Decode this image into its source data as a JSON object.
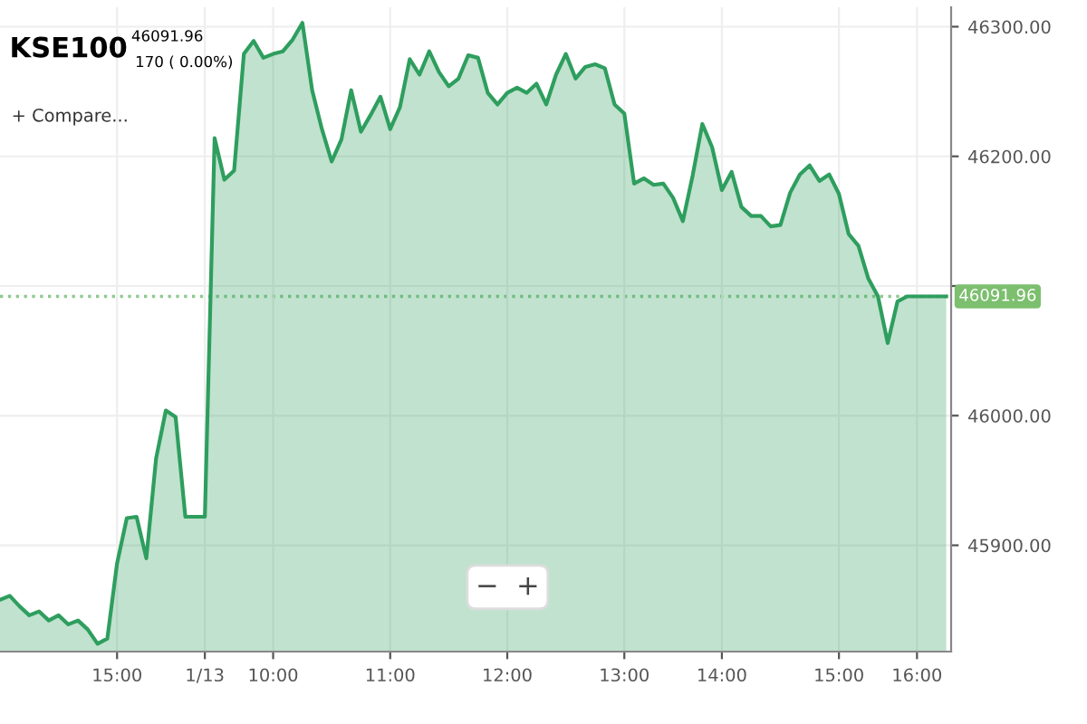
{
  "chart_data": {
    "type": "area",
    "title": "KSE100",
    "subtitle": "46091.96\n170 ( 0.00%)",
    "annotations": [
      "+ Compare...",
      "−  +"
    ],
    "categories": [
      null,
      null,
      null,
      null,
      null,
      null,
      null,
      null,
      null,
      null,
      null,
      null,
      "15:00",
      null,
      null,
      null,
      null,
      null,
      null,
      null,
      null,
      "1/13",
      null,
      null,
      null,
      null,
      null,
      null,
      "10:00",
      null,
      null,
      null,
      null,
      null,
      null,
      null,
      null,
      null,
      null,
      null,
      "11:00",
      null,
      null,
      null,
      null,
      null,
      null,
      null,
      null,
      null,
      null,
      null,
      "12:00",
      null,
      null,
      null,
      null,
      null,
      null,
      null,
      null,
      null,
      null,
      null,
      "13:00",
      null,
      null,
      null,
      null,
      null,
      null,
      null,
      null,
      null,
      "14:00",
      null,
      null,
      null,
      null,
      null,
      null,
      null,
      null,
      null,
      null,
      null,
      "15:00",
      null,
      null,
      null,
      null,
      null,
      null,
      null,
      "16:00",
      null,
      null,
      null
    ],
    "series": [
      {
        "color": "#2e9e5e",
        "values": [
          45858,
          45861,
          45853,
          45846,
          45849,
          45842,
          45846,
          45839,
          45842,
          45835,
          45824,
          45828,
          45886,
          45921,
          45922,
          45890,
          45967,
          46004,
          45999,
          45922,
          45922,
          45922,
          46214,
          46182,
          46189,
          46279,
          46289,
          46276,
          46279,
          46281,
          46290,
          46303,
          46251,
          46221,
          46196,
          46213,
          46251,
          46219,
          46232,
          46246,
          46221,
          46238,
          46275,
          46263,
          46281,
          46265,
          46254,
          46260,
          46278,
          46276,
          46249,
          46240,
          46249,
          46253,
          46249,
          46256,
          46240,
          46263,
          46279,
          46260,
          46269,
          46271,
          46268,
          46240,
          46233,
          46179,
          46183,
          46178,
          46179,
          46168,
          46150,
          46185,
          46225,
          46207,
          46174,
          46188,
          46161,
          46154,
          46154,
          46146,
          46147,
          46172,
          46186,
          46193,
          46181,
          46186,
          46171,
          46140,
          46131,
          46106,
          46092,
          46056,
          46088,
          46092,
          46092,
          46092,
          46092,
          46092
        ]
      }
    ],
    "ylim": [
      45818,
      46315
    ],
    "yticks": [
      {
        "value": 45900,
        "label": "45900.00"
      },
      {
        "value": 46000,
        "label": "46000.00"
      },
      {
        "value": 46100,
        "label": null
      },
      {
        "value": 46200,
        "label": "46200.00"
      },
      {
        "value": 46300,
        "label": "46300.00"
      }
    ],
    "ref_lines": [
      {
        "axis": "y",
        "value": 46091.96,
        "label": "46091.96",
        "color": "#8fc98f",
        "line_style": "dotted"
      }
    ],
    "grid": true,
    "legend": false,
    "marker": "none",
    "line_style": "solid"
  }
}
